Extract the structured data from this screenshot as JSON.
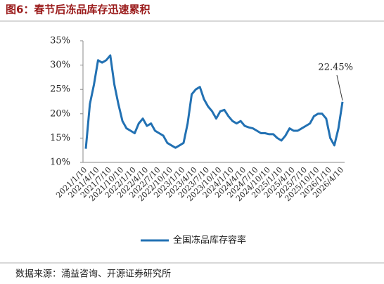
{
  "chart_data": {
    "type": "line",
    "title": "图6：春节后冻品库存迅速累积",
    "source": "数据来源：涌益咨询、开源证券研究所",
    "categories": [
      "2021/1/10",
      null,
      null,
      "2021/4/10",
      null,
      null,
      "2021/7/10",
      null,
      null,
      "2021/10/10",
      null,
      null,
      "2022/1/10",
      null,
      null,
      "2022/4/10",
      null,
      null,
      "2022/7/10",
      null,
      null,
      "2022/10/10",
      null,
      null,
      "2023/1/10",
      null,
      null,
      "2023/4/10",
      null,
      null,
      "2023/7/10",
      null,
      null,
      "2023/10/10",
      null,
      null,
      "2024/1/10",
      null,
      null,
      "2024/4/10",
      null,
      null,
      "2024/7/10",
      null,
      null,
      "2024/10/10",
      null,
      null,
      "2025/1/10",
      null,
      null,
      "2025/4/10",
      null,
      null,
      "2025/7/10",
      null,
      null,
      "2025/10/10",
      null,
      null,
      "2026/1/10",
      null,
      null,
      "2026/4/10"
    ],
    "series": [
      {
        "name": "全国冻品库存容率",
        "color": "#2271b3",
        "values": [
          12.8,
          22,
          26,
          31,
          30.5,
          31,
          32,
          26,
          22,
          18.5,
          17,
          16.5,
          16,
          18,
          19,
          17.5,
          18,
          16.5,
          16,
          15.5,
          14,
          13.5,
          13,
          13.5,
          14,
          18,
          24,
          25,
          25.5,
          23,
          21.5,
          20.5,
          19,
          20.5,
          20.8,
          19.5,
          18.5,
          18,
          18.5,
          17.5,
          17.2,
          17,
          16.5,
          16,
          16,
          15.8,
          15.8,
          15,
          14.5,
          15.5,
          17,
          16.5,
          16.5,
          17,
          17.5,
          18,
          19.5,
          20,
          20,
          19,
          15,
          13.5,
          17,
          22.45
        ],
        "value_labels": [
          null,
          null,
          null,
          null,
          null,
          null,
          null,
          null,
          null,
          null,
          null,
          null,
          null,
          null,
          null,
          null,
          null,
          null,
          null,
          null,
          null,
          null,
          null,
          null,
          null,
          null,
          null,
          null,
          null,
          null,
          null,
          null,
          null,
          null,
          null,
          null,
          null,
          null,
          null,
          null,
          null,
          null,
          null,
          null,
          null,
          null,
          null,
          null,
          null,
          null,
          null,
          null,
          null,
          null,
          null,
          null,
          null,
          null,
          null,
          null,
          null,
          null,
          null,
          "22.45%"
        ]
      }
    ],
    "ylim": [
      10,
      35
    ],
    "yticks": [
      {
        "value": 10,
        "label": "10%"
      },
      {
        "value": 15,
        "label": "15%"
      },
      {
        "value": 20,
        "label": "20%"
      },
      {
        "value": 25,
        "label": "25%"
      },
      {
        "value": 30,
        "label": "30%"
      },
      {
        "value": 35,
        "label": "35%"
      }
    ],
    "grid": false,
    "legend": "bottom"
  }
}
